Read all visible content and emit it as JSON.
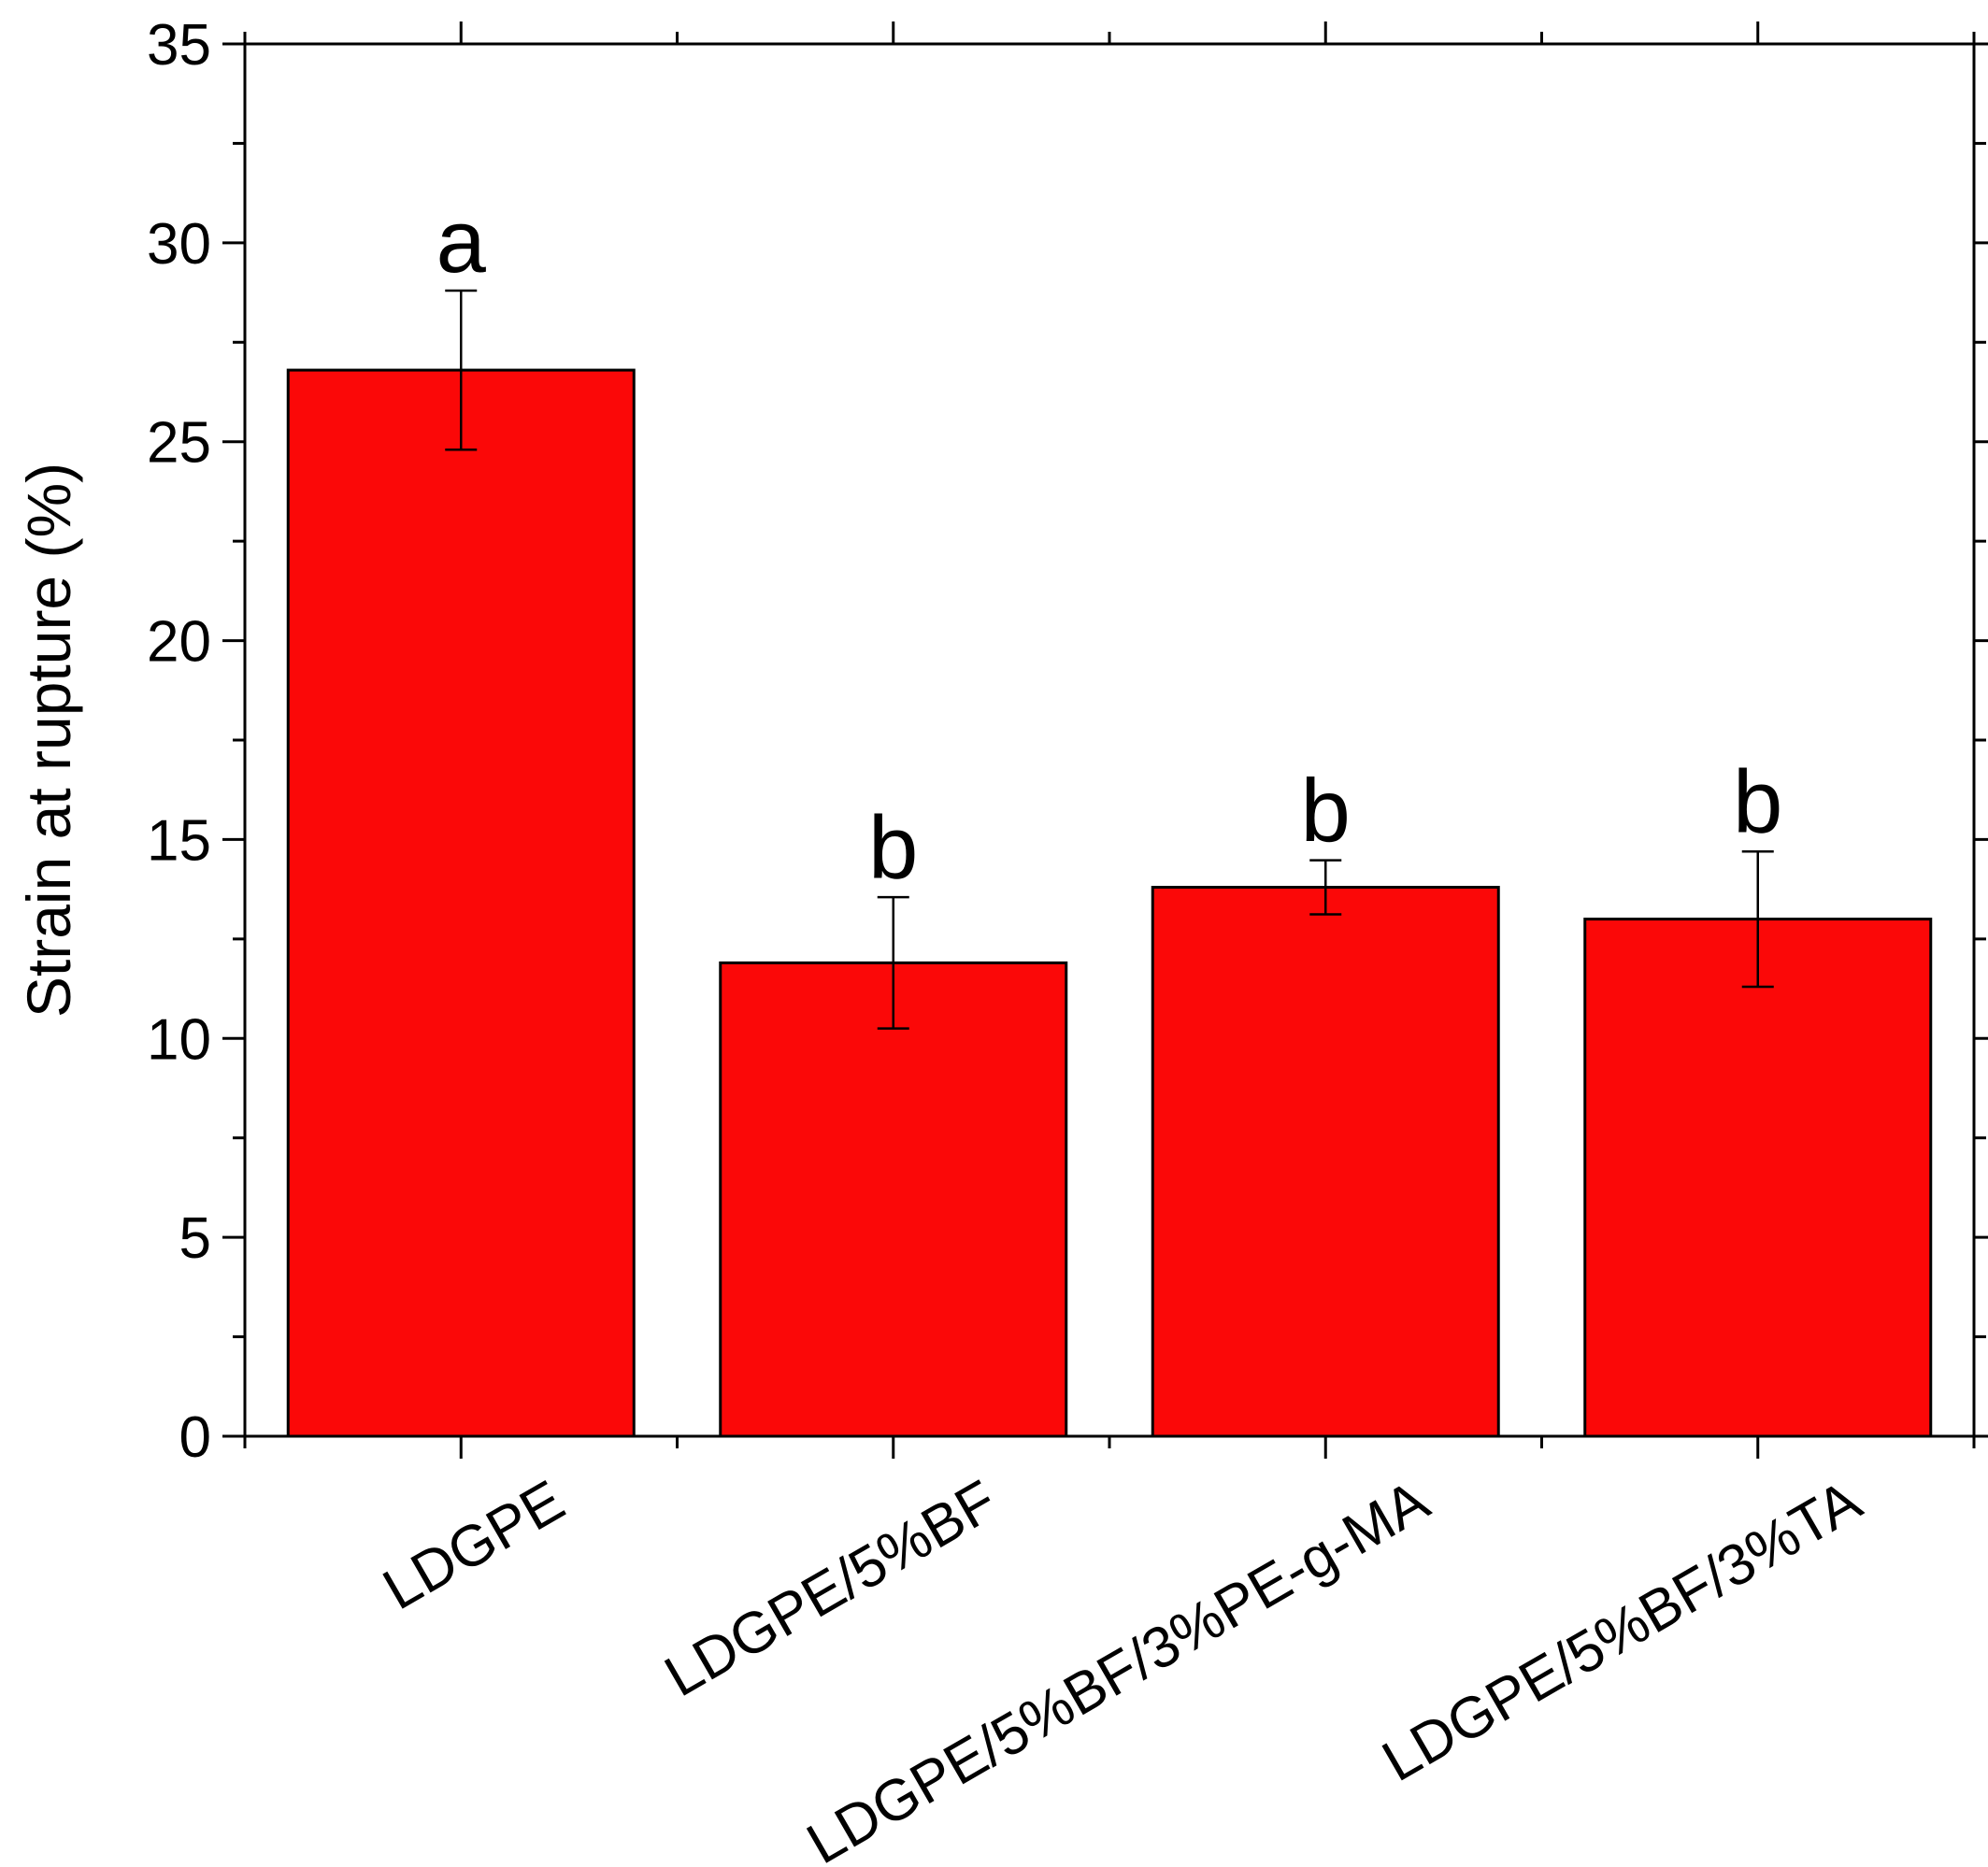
{
  "chart_data": {
    "type": "bar",
    "title": "",
    "xlabel": "",
    "ylabel": "Strain at rupture (%)",
    "ylim": [
      0,
      35
    ],
    "yticks": [
      0,
      5,
      10,
      15,
      20,
      25,
      30,
      35
    ],
    "grid": false,
    "categories": [
      "LDGPE",
      "LDGPE/5%BF",
      "LDGPE/5%BF/3%PE-g-MA",
      "LDGPE/5%BF/3%TA"
    ],
    "values": [
      26.8,
      11.9,
      13.8,
      13.0
    ],
    "errors": [
      2.0,
      1.65,
      0.68,
      1.7
    ],
    "significance": [
      "a",
      "b",
      "b",
      "b"
    ],
    "bar_color": "#fb0808",
    "edge_color": "#000000"
  }
}
